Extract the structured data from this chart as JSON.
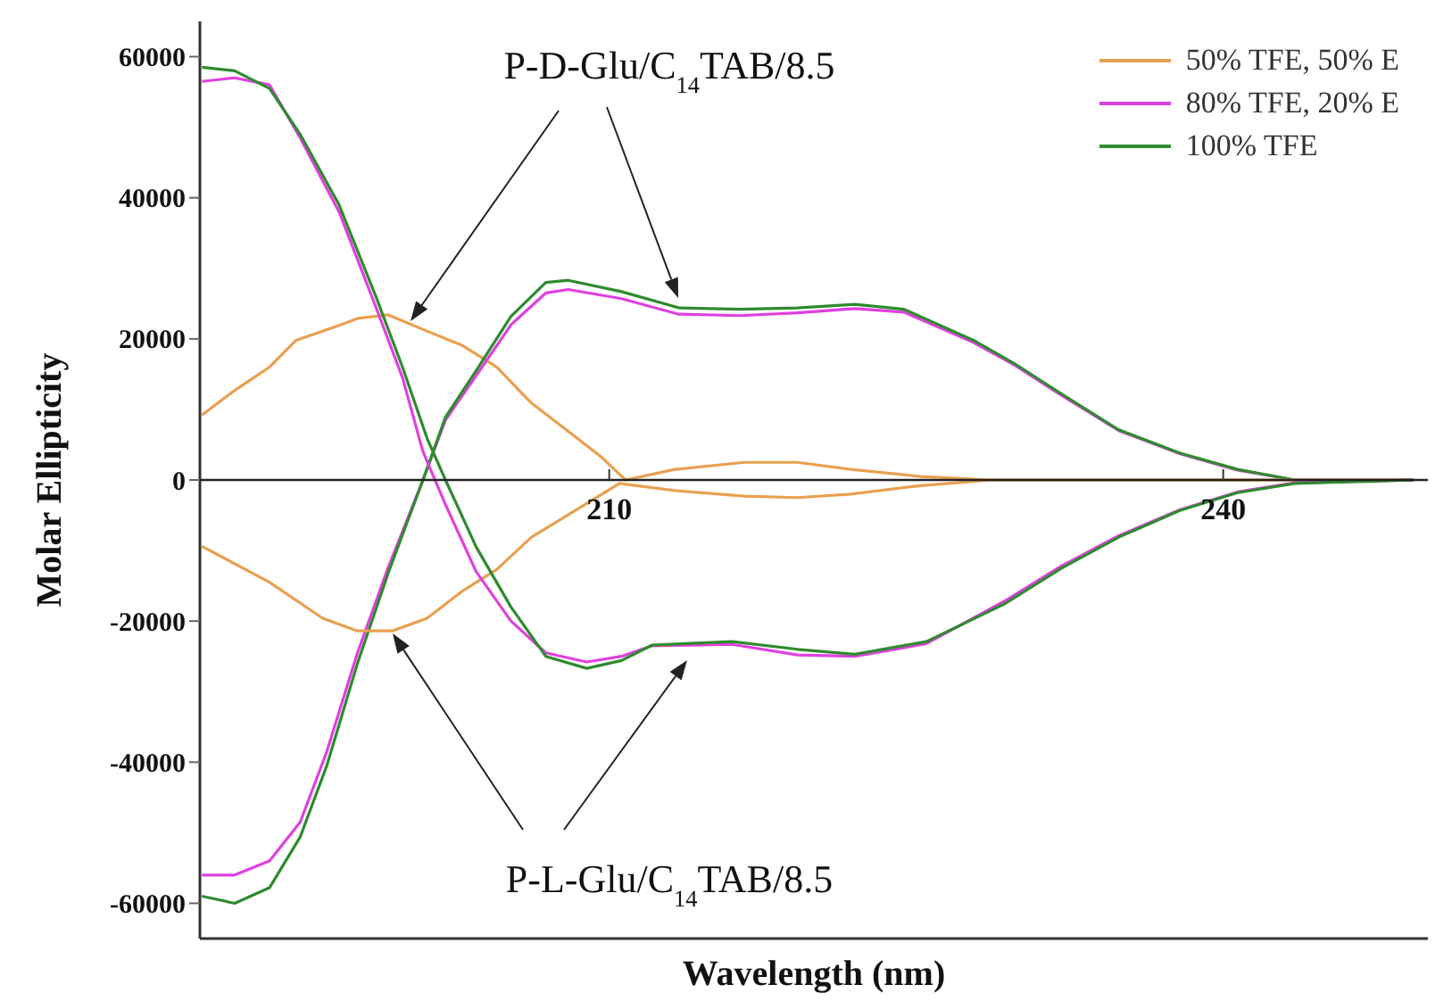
{
  "chart_data": {
    "type": "line",
    "xlabel": "Wavelength (nm)",
    "ylabel": "Molar Ellipticity",
    "xlim": [
      190,
      250
    ],
    "xticks": [
      210,
      240
    ],
    "ylim": [
      -65000,
      65000
    ],
    "yticks": [
      -60000,
      -40000,
      -20000,
      0,
      20000,
      40000,
      60000
    ],
    "grid": false,
    "legend": "top right",
    "marker": "none",
    "line_style": "solid",
    "annotations": [
      "P-D-Glu/C$_{14}$TAB/8.5",
      "P-L-Glu/C$_{14}$TAB/8.5"
    ],
    "series": [
      {
        "name": "50% TFE, 50% E",
        "color": "#e8a050",
        "x": [
          190.1,
          191.7,
          193.4,
          194.7,
          196.8,
          197.7,
          199.2,
          201.1,
          202.8,
          204.5,
          206.2,
          207.9,
          209.6,
          210.8,
          213.2,
          216.6,
          219.2,
          221.8,
          225.2,
          228.7,
          249.3
        ],
        "values": [
          9200,
          12700,
          16000,
          19800,
          21900,
          22900,
          23400,
          21100,
          19100,
          16000,
          10900,
          7100,
          3300,
          0,
          1500,
          2500,
          2500,
          1500,
          500,
          0,
          0
        ]
      },
      {
        "name": "80% TFE, 20% E",
        "color": "#e040e0",
        "x": [
          190.1,
          191.7,
          193.4,
          194.9,
          196.2,
          197.7,
          199.2,
          200.9,
          202.0,
          203.5,
          205.2,
          206.9,
          208.0,
          210.6,
          213.4,
          216.4,
          219.2,
          222.0,
          224.4,
          227.8,
          229.8,
          232.1,
          234.9,
          237.9,
          240.7,
          243.5,
          249.3
        ],
        "values": [
          -56000,
          -56000,
          -54000,
          -48500,
          -38500,
          -24500,
          -12400,
          0,
          8500,
          14800,
          22000,
          26500,
          27000,
          25700,
          23500,
          23300,
          23700,
          24300,
          23800,
          19500,
          16300,
          12000,
          7000,
          3700,
          1400,
          0,
          0
        ]
      },
      {
        "name": "100% TFE",
        "color": "#2e8b2e",
        "x": [
          190.1,
          191.7,
          193.4,
          194.9,
          196.2,
          197.7,
          199.2,
          200.9,
          202.0,
          203.5,
          205.2,
          206.9,
          208.0,
          210.6,
          213.4,
          216.4,
          219.2,
          222.0,
          224.4,
          227.8,
          229.8,
          232.1,
          234.9,
          237.9,
          240.7,
          243.5,
          249.3
        ],
        "values": [
          -59000,
          -60000,
          -57800,
          -50600,
          -40500,
          -26000,
          -13200,
          0,
          8900,
          15500,
          23200,
          28000,
          28300,
          26700,
          24400,
          24200,
          24400,
          24900,
          24200,
          19800,
          16500,
          12200,
          7100,
          3800,
          1500,
          0,
          0
        ]
      },
      {
        "color": "#e8a050",
        "x": [
          190.1,
          193.4,
          196.0,
          197.7,
          199.4,
          201.1,
          202.8,
          204.5,
          206.2,
          207.9,
          210.5,
          213.2,
          216.6,
          219.2,
          221.8,
          225.2,
          228.7,
          249.3
        ],
        "values": [
          -9400,
          -14500,
          -19600,
          -21400,
          -21400,
          -19600,
          -15800,
          -12700,
          -8100,
          -5100,
          -500,
          -1500,
          -2300,
          -2500,
          -2000,
          -800,
          0,
          0
        ]
      },
      {
        "color": "#e040e0",
        "x": [
          190.1,
          191.7,
          193.4,
          194.9,
          196.8,
          198.6,
          199.9,
          200.9,
          202.0,
          203.5,
          205.2,
          206.9,
          208.9,
          210.6,
          212.1,
          216.0,
          219.2,
          222.0,
          225.5,
          229.3,
          232.1,
          234.9,
          237.9,
          240.7,
          243.5,
          249.3
        ],
        "values": [
          56500,
          57000,
          56000,
          48500,
          38000,
          24500,
          14500,
          4000,
          -3500,
          -13000,
          -20000,
          -24500,
          -25800,
          -25000,
          -23500,
          -23300,
          -24800,
          -25000,
          -23200,
          -17200,
          -12200,
          -7900,
          -4200,
          -1700,
          -400,
          0
        ]
      },
      {
        "color": "#2e8b2e",
        "x": [
          190.1,
          191.7,
          193.4,
          194.9,
          196.8,
          198.6,
          199.9,
          201.1,
          202.0,
          203.5,
          205.2,
          206.9,
          208.9,
          210.6,
          212.1,
          216.0,
          219.2,
          222.0,
          225.5,
          229.3,
          232.1,
          234.9,
          237.9,
          240.7,
          243.5,
          249.3
        ],
        "values": [
          58500,
          58000,
          55500,
          49000,
          39000,
          26000,
          16000,
          5900,
          0,
          -9500,
          -18000,
          -25000,
          -26700,
          -25600,
          -23400,
          -22900,
          -24000,
          -24700,
          -22900,
          -17600,
          -12500,
          -8100,
          -4300,
          -1800,
          -500,
          0
        ]
      }
    ]
  }
}
